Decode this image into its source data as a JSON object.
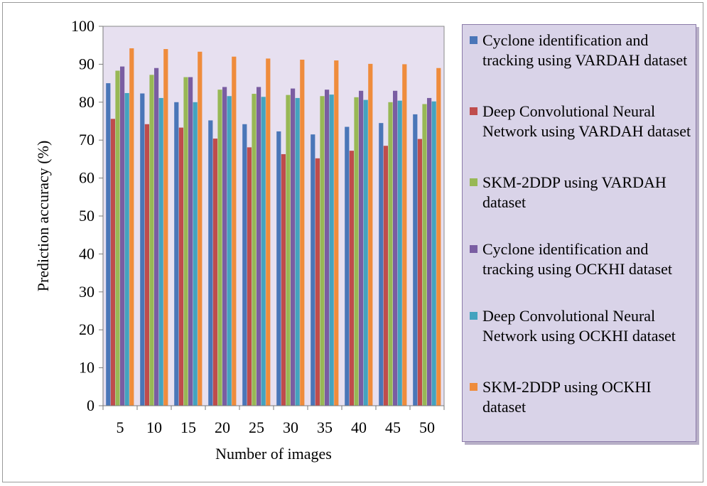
{
  "chart_data": {
    "type": "bar",
    "title": "",
    "xlabel": "Number of images",
    "ylabel": "Prediction accuracy (%)",
    "ylim": [
      0,
      100
    ],
    "yticks": [
      "0",
      "10",
      "20",
      "30",
      "40",
      "50",
      "60",
      "70",
      "80",
      "90",
      "100"
    ],
    "categories": [
      "5",
      "10",
      "15",
      "20",
      "25",
      "30",
      "35",
      "40",
      "45",
      "50"
    ],
    "grid": false,
    "legend_position": "right",
    "plot_background": "#e7e0f0",
    "series": [
      {
        "name": "Cyclone identification and tracking using VARDAH dataset",
        "color": "#4a76b8",
        "values": [
          85,
          82.3,
          80,
          75.2,
          74.2,
          72.3,
          71.5,
          73.5,
          74.5,
          76.8
        ]
      },
      {
        "name": "Deep Convolutional Neural Network using VARDAH dataset",
        "color": "#bf4c4c",
        "values": [
          75.6,
          74.2,
          73.3,
          70.4,
          68.1,
          66.3,
          65.2,
          67.2,
          68.5,
          70.3
        ]
      },
      {
        "name": "SKM-2DDP using VARDAH dataset",
        "color": "#98b855",
        "values": [
          88.3,
          87.2,
          86.6,
          83.3,
          82.2,
          81.9,
          81.6,
          81.3,
          80,
          79.5
        ]
      },
      {
        "name": "Cyclone identification and tracking using  OCKHI dataset",
        "color": "#7a5da2",
        "values": [
          89.4,
          89,
          86.6,
          84,
          84,
          83.6,
          83.3,
          83,
          83,
          81.1
        ]
      },
      {
        "name": "Deep Convolutional Neural Network using OCKHI dataset",
        "color": "#44a3bf",
        "values": [
          82.4,
          81.1,
          80,
          81.6,
          81.4,
          81.1,
          82,
          80.6,
          80.4,
          80.2
        ]
      },
      {
        "name": "SKM-2DDP using OCKHI dataset",
        "color": "#ef8c3c",
        "values": [
          94.2,
          94,
          93.3,
          92,
          91.5,
          91.2,
          91,
          90.1,
          90,
          89
        ]
      }
    ]
  }
}
